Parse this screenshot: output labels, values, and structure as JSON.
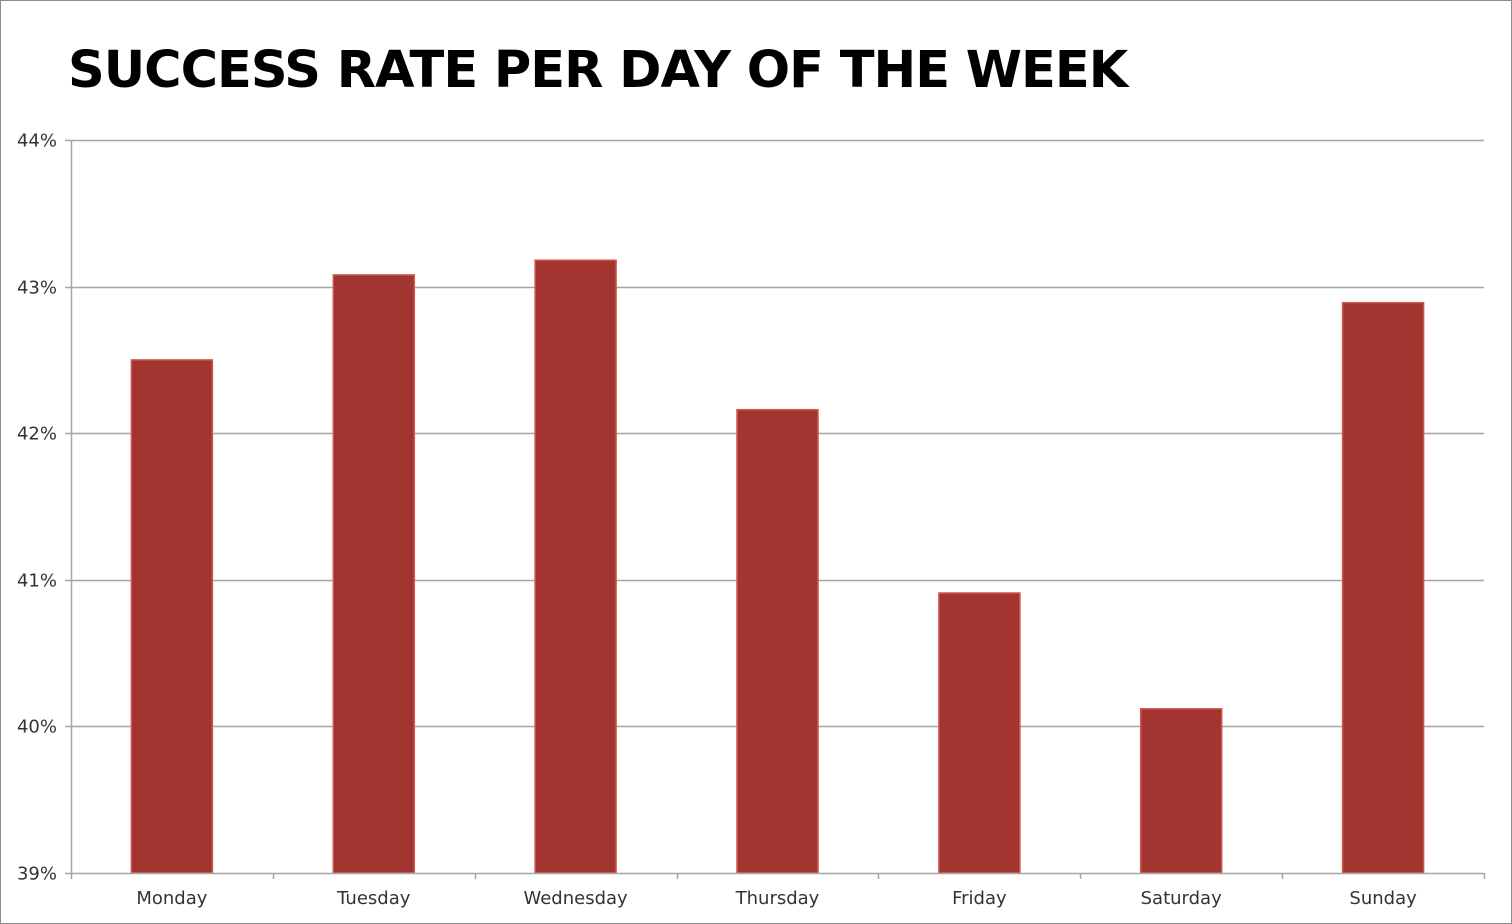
{
  "chart_data": {
    "type": "bar",
    "title": "SUCCESS RATE PER DAY OF THE WEEK",
    "xlabel": "",
    "ylabel": "",
    "categories": [
      "Monday",
      "Tuesday",
      "Wednesday",
      "Thursday",
      "Friday",
      "Saturday",
      "Sunday"
    ],
    "values": [
      42.5,
      43.08,
      43.18,
      42.16,
      40.91,
      40.12,
      42.89
    ],
    "ylim": [
      39,
      44
    ],
    "yticks": [
      39,
      40,
      41,
      42,
      43,
      44
    ],
    "ytick_labels": [
      "39%",
      "40%",
      "41%",
      "42%",
      "43%",
      "44%"
    ],
    "grid": true,
    "legend": "none",
    "bar_color": "#a2352f",
    "bar_edge_color": "#d0574f",
    "grid_color": "#a6a6a6"
  }
}
